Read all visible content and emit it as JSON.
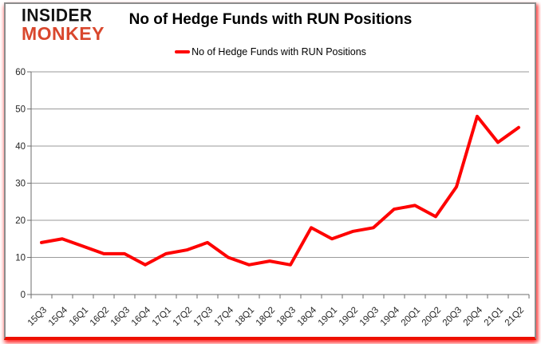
{
  "logo": {
    "line1": "INSIDER",
    "line2": "MONKEY"
  },
  "header": {
    "title": "No of Hedge Funds with RUN Positions"
  },
  "legend": {
    "label": "No of Hedge Funds with RUN Positions"
  },
  "chart_data": {
    "type": "line",
    "title": "No of Hedge Funds with RUN Positions",
    "categories": [
      "15Q3",
      "15Q4",
      "16Q1",
      "16Q2",
      "16Q3",
      "16Q4",
      "17Q1",
      "17Q2",
      "17Q3",
      "17Q4",
      "18Q1",
      "18Q2",
      "18Q3",
      "18Q4",
      "19Q1",
      "19Q2",
      "19Q3",
      "19Q4",
      "20Q1",
      "20Q2",
      "20Q3",
      "20Q4",
      "21Q1",
      "21Q2"
    ],
    "series": [
      {
        "name": "No of Hedge Funds with RUN Positions",
        "color": "#fe0100",
        "values": [
          14,
          15,
          13,
          11,
          11,
          8,
          11,
          12,
          14,
          10,
          8,
          9,
          8,
          18,
          15,
          17,
          18,
          23,
          24,
          21,
          29,
          48,
          41,
          45
        ]
      }
    ],
    "xlabel": "",
    "ylabel": "",
    "ylim": [
      0,
      60
    ],
    "yticks": [
      0,
      10,
      20,
      30,
      40,
      50,
      60
    ],
    "grid": true,
    "legend_position": "top"
  },
  "colors": {
    "series_line": "#fe0100",
    "gridline": "#9a9a9a",
    "axis": "#6e6e6e",
    "tick_label": "#262626",
    "logo_black": "#121212",
    "logo_red": "#d9472d",
    "frame_border": "#8c8c8c",
    "frame_glow": "#ee1000"
  }
}
